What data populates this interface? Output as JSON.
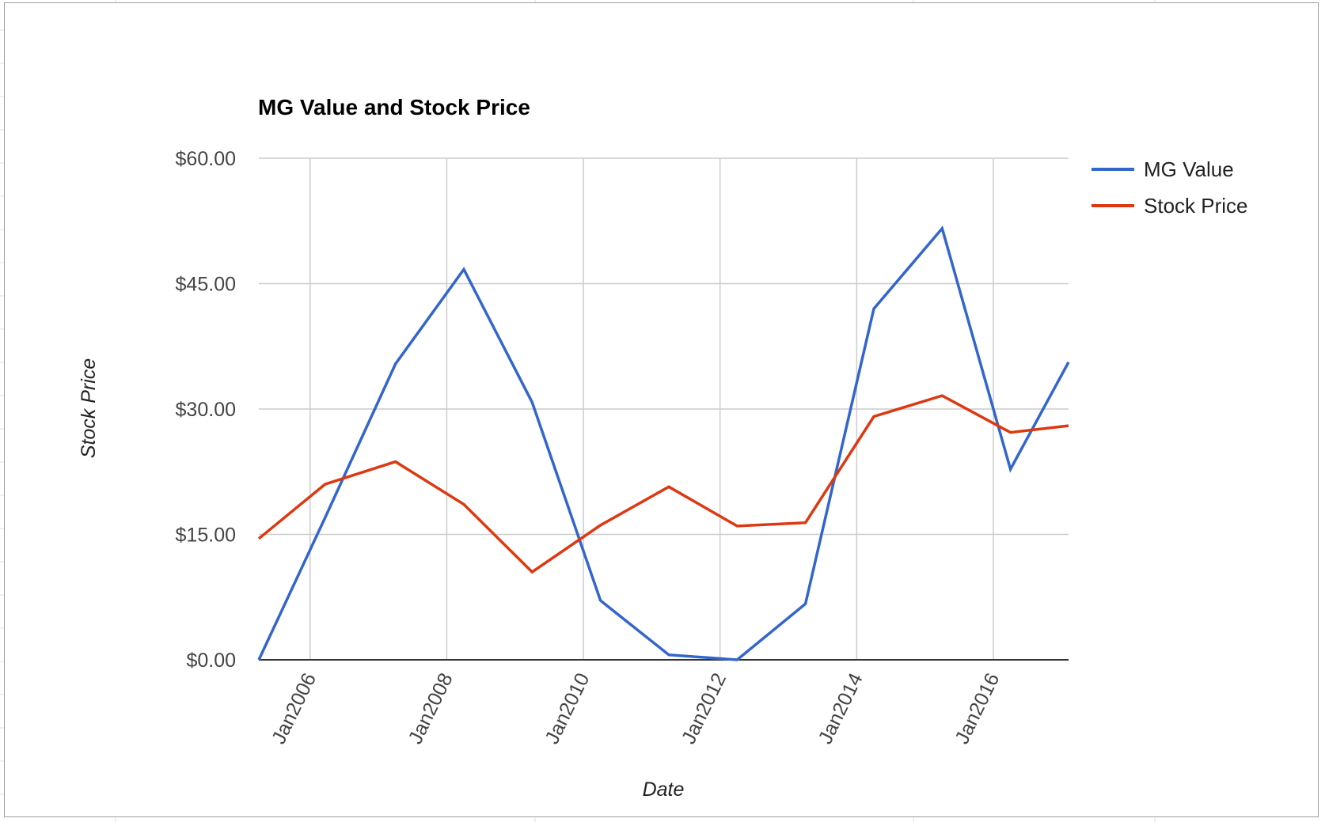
{
  "chart_data": {
    "type": "line",
    "title": "MG Value and Stock Price",
    "xlabel": "Date",
    "ylabel": "Stock Price",
    "ylim": [
      0,
      60
    ],
    "y_ticks": [
      "$0.00",
      "$15.00",
      "$30.00",
      "$45.00",
      "$60.00"
    ],
    "y_tick_values": [
      0,
      15,
      30,
      45,
      60
    ],
    "x_ticks": [
      "Jan2006",
      "Jan2008",
      "Jan2010",
      "Jan2012",
      "Jan2014",
      "Jan2016"
    ],
    "x_tick_values": [
      2006.0,
      2008.0,
      2010.0,
      2012.0,
      2014.0,
      2016.0
    ],
    "xlim": [
      2005.25,
      2017.1
    ],
    "grid": true,
    "legend_position": "right",
    "x": [
      2005.25,
      2006.22,
      2007.25,
      2008.25,
      2009.25,
      2010.25,
      2011.25,
      2012.25,
      2013.25,
      2014.25,
      2015.25,
      2016.25,
      2017.1
    ],
    "series": [
      {
        "name": "MG Value",
        "color": "#3366cc",
        "values": [
          0.0,
          17.0,
          35.4,
          46.7,
          30.8,
          7.1,
          0.6,
          0.0,
          6.7,
          42.0,
          51.6,
          22.8,
          35.6
        ]
      },
      {
        "name": "Stock Price",
        "color": "#dc3912",
        "values": [
          14.5,
          21.0,
          23.7,
          18.6,
          10.5,
          16.1,
          20.7,
          16.0,
          16.4,
          29.1,
          31.6,
          27.2,
          28.0
        ]
      }
    ]
  }
}
